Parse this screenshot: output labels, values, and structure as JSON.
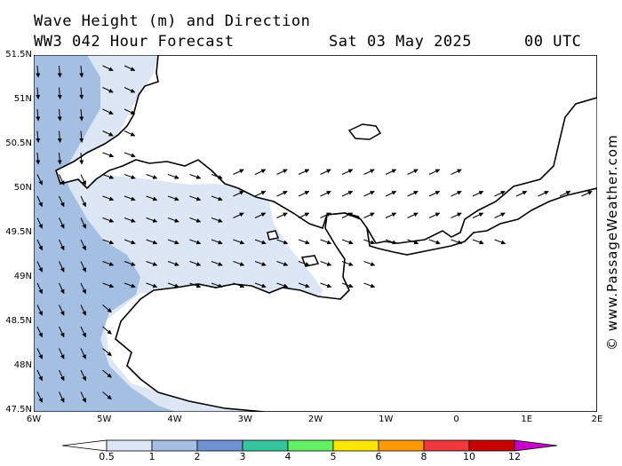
{
  "header": {
    "title_line1": "Wave Height (m) and Direction",
    "title_line2": "WW3 042 Hour Forecast",
    "date": "Sat 03 May 2025",
    "time": "00 UTC"
  },
  "credit": "© www.PassageWeather.com",
  "axes": {
    "lat_labels": [
      "51.5N",
      "51N",
      "50.5N",
      "50N",
      "49.5N",
      "49N",
      "48.5N",
      "48N",
      "47.5N"
    ],
    "lon_labels": [
      "6W",
      "5W",
      "4W",
      "3W",
      "2W",
      "1W",
      "0",
      "1E",
      "2E"
    ]
  },
  "legend": {
    "labels": [
      "0.5",
      "1",
      "2",
      "3",
      "4",
      "5",
      "6",
      "8",
      "10",
      "12"
    ],
    "colors": [
      "#ffffff",
      "#dde6f5",
      "#a4bfe2",
      "#6d93d4",
      "#35c49d",
      "#64f064",
      "#ffe600",
      "#ff9900",
      "#f0373c",
      "#c80000",
      "#c800c8"
    ]
  },
  "map": {
    "region": "English Channel",
    "colors": {
      "sea_low": "#ffffff",
      "sea_05_1": "#dde6f5",
      "sea_1_2": "#a4bfe2",
      "land": "#ffffff",
      "coast": "#000000",
      "arrow": "#000000"
    },
    "wave_direction_note": "Arrows indicate wave propagation direction"
  }
}
